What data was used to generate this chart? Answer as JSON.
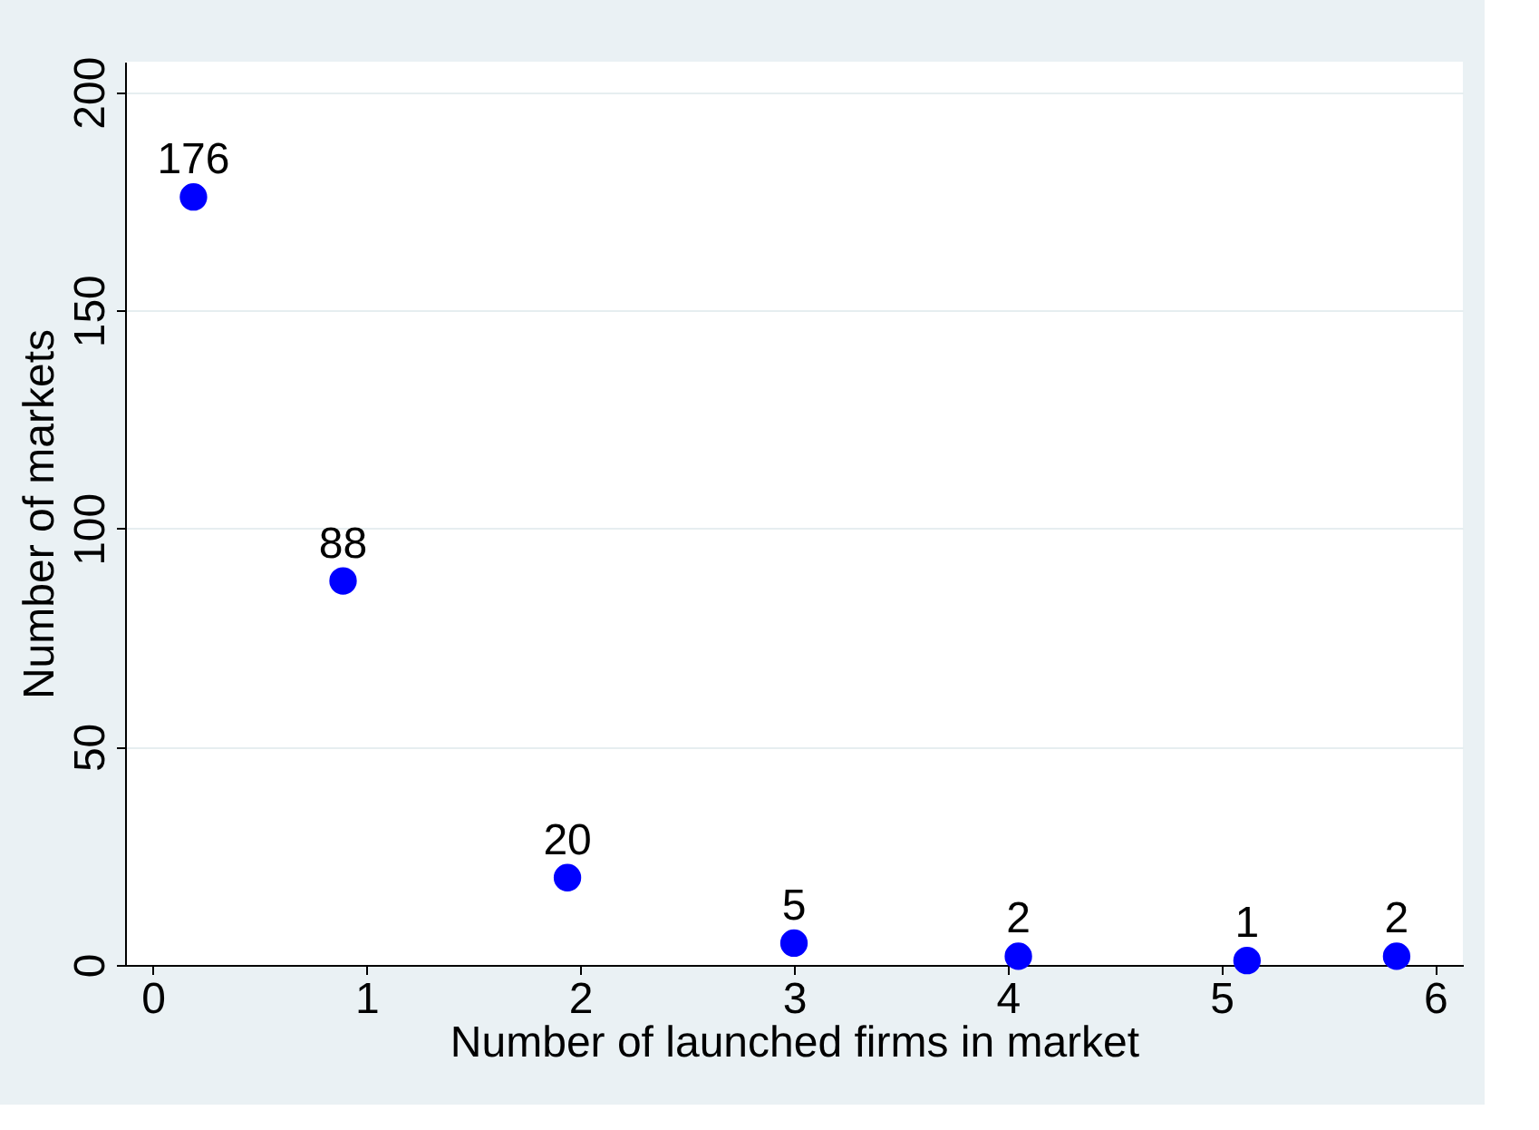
{
  "chart_data": {
    "type": "scatter",
    "xlabel": "Number of launched firms in market",
    "ylabel": "Number of markets",
    "x": [
      0.19,
      0.89,
      1.94,
      3.0,
      4.05,
      5.12,
      5.82
    ],
    "series": [
      {
        "color": "#0000ff",
        "values": [
          176,
          88,
          20,
          5,
          2,
          1,
          2
        ]
      }
    ],
    "data_labels": true,
    "marker": "circle",
    "xlim": [
      -0.13,
      6.13
    ],
    "xticks": [
      0,
      1,
      2,
      3,
      4,
      5,
      6
    ],
    "ylim": [
      0,
      207
    ],
    "yticks": [
      0,
      50,
      100,
      150,
      200
    ],
    "grid": "y"
  }
}
